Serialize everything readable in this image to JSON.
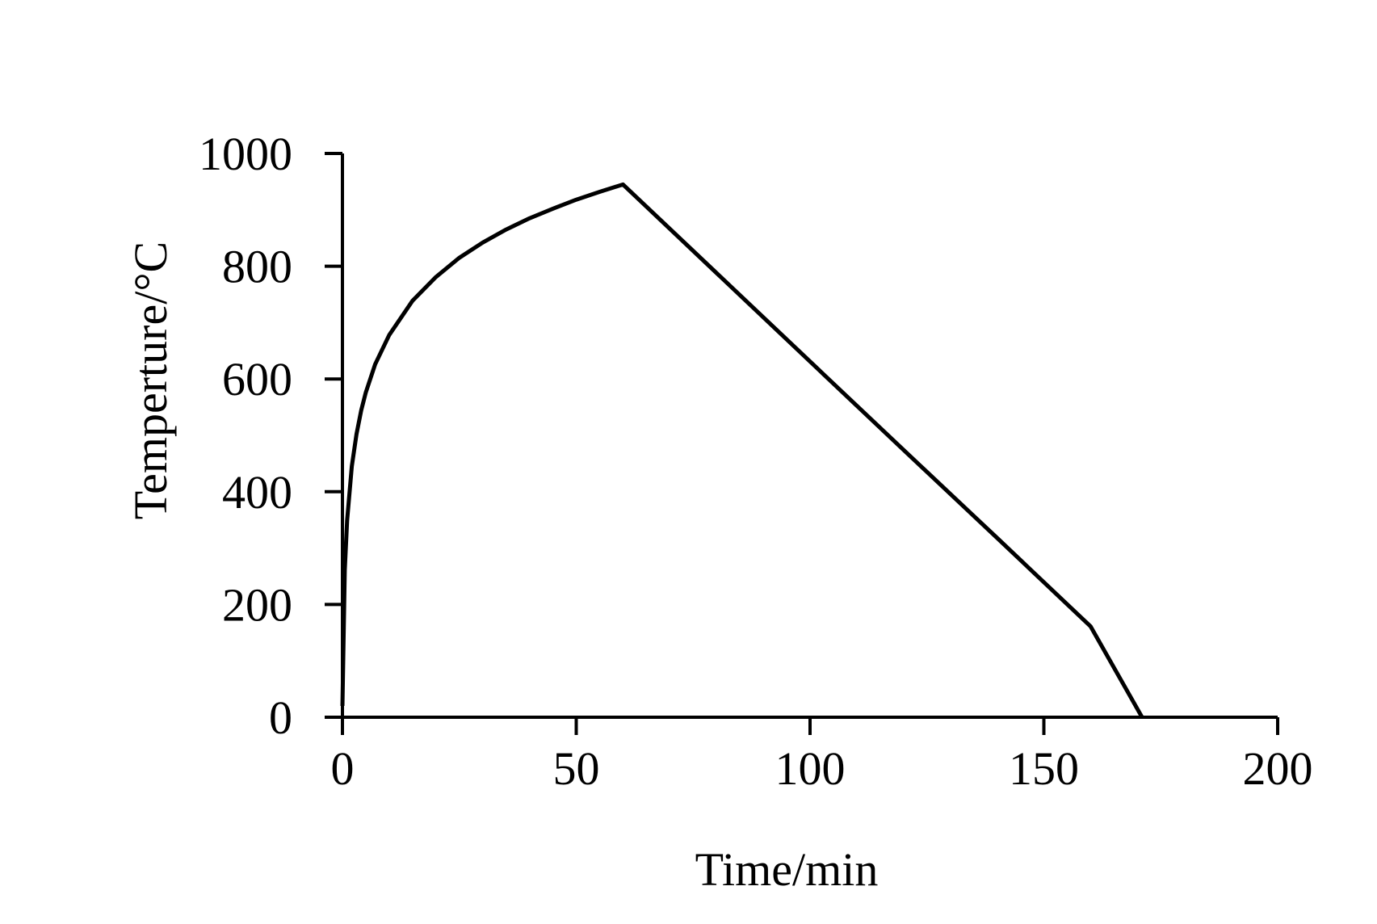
{
  "chart_data": {
    "type": "line",
    "title": "",
    "xlabel": "Time/min",
    "ylabel": "Temperture/°C",
    "xlim": [
      0,
      200
    ],
    "ylim": [
      0,
      1000
    ],
    "xticks": [
      0,
      50,
      100,
      150,
      200
    ],
    "yticks": [
      0,
      200,
      400,
      600,
      800,
      1000
    ],
    "grid": false,
    "legend": "none",
    "line_color": "#000000",
    "series": [
      {
        "x": [
          0,
          0.5,
          1,
          2,
          3,
          4,
          5,
          7,
          10,
          15,
          20,
          25,
          30,
          35,
          40,
          45,
          50,
          55,
          60,
          80,
          100,
          120,
          140,
          160,
          171
        ],
        "y": [
          20,
          261,
          349,
          445,
          502,
          544,
          576,
          626,
          678,
          739,
          781,
          815,
          842,
          865,
          885,
          902,
          918,
          932,
          945,
          788,
          631,
          474,
          318,
          161,
          0
        ]
      }
    ]
  }
}
